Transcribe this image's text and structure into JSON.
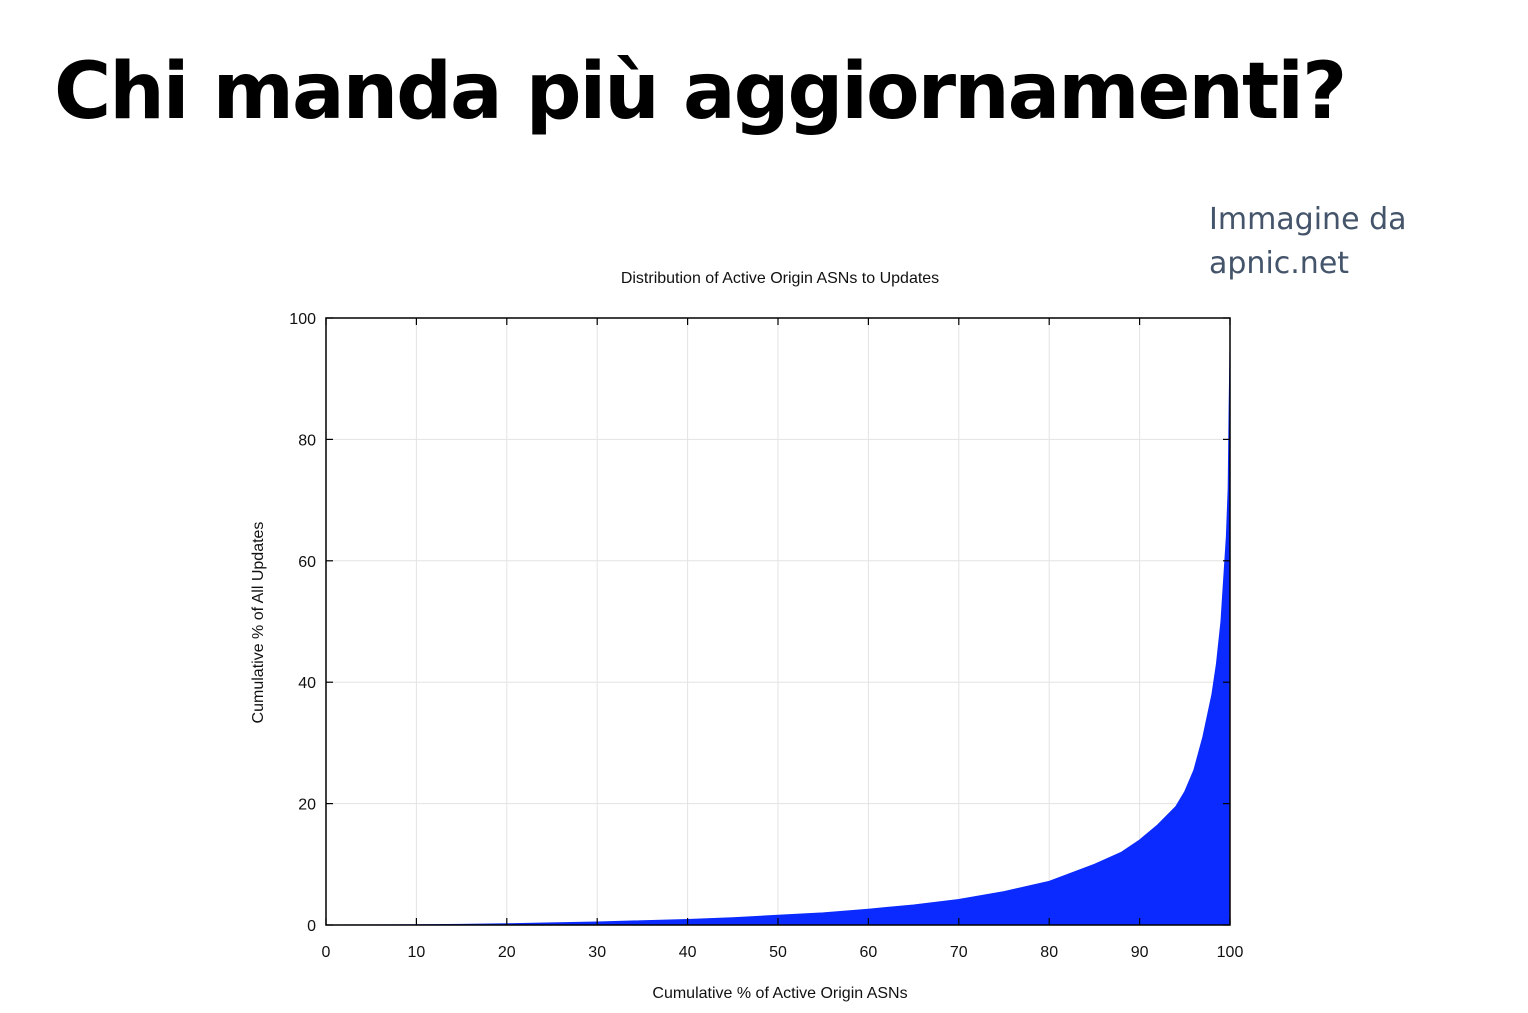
{
  "slide": {
    "title": "Chi manda più aggiornamenti?",
    "credit_line1": "Immagine da",
    "credit_line2": "apnic.net"
  },
  "chart_data": {
    "type": "area",
    "title": "Distribution of Active Origin ASNs to Updates",
    "xlabel": "Cumulative % of Active Origin ASNs",
    "ylabel": "Cumulative % of All Updates",
    "xlim": [
      0,
      100
    ],
    "ylim": [
      0,
      100
    ],
    "x_ticks": [
      0,
      10,
      20,
      30,
      40,
      50,
      60,
      70,
      80,
      90,
      100
    ],
    "y_ticks": [
      0,
      20,
      40,
      60,
      80,
      100
    ],
    "grid": true,
    "fill_color": "#0a2aff",
    "series": [
      {
        "x": [
          0,
          10,
          15,
          20,
          25,
          30,
          35,
          40,
          45,
          50,
          55,
          60,
          65,
          70,
          75,
          80,
          85,
          88,
          90,
          92,
          94,
          95,
          96,
          97,
          98,
          98.5,
          99,
          99.3,
          99.6,
          99.8,
          99.9,
          100
        ],
        "y": [
          0,
          0.05,
          0.1,
          0.2,
          0.35,
          0.5,
          0.7,
          0.9,
          1.2,
          1.6,
          2.0,
          2.6,
          3.3,
          4.2,
          5.5,
          7.2,
          10.0,
          12.0,
          14.0,
          16.5,
          19.5,
          22.0,
          25.5,
          31.0,
          38.0,
          43.0,
          50.0,
          57.0,
          64.0,
          72.0,
          85.0,
          95.0
        ]
      }
    ]
  }
}
